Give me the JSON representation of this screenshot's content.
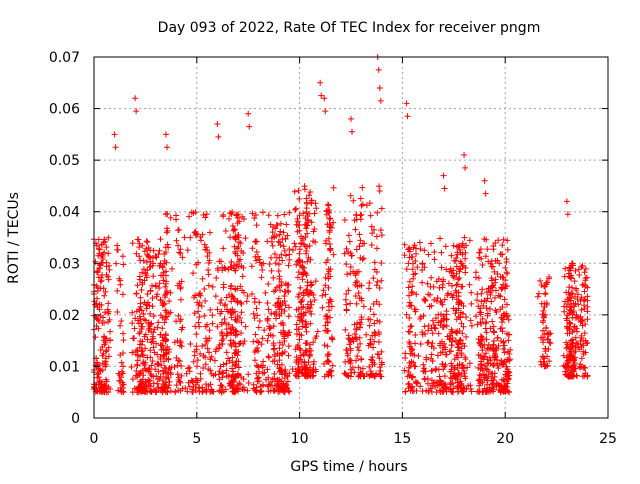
{
  "chart_data": {
    "type": "scatter",
    "title": "Day 093 of 2022, Rate Of TEC Index for receiver pngm",
    "xlabel": "GPS time / hours",
    "ylabel": "ROTI / TECUs",
    "xlim": [
      0,
      25
    ],
    "ylim": [
      0,
      0.07
    ],
    "x_ticks": [
      "0",
      "5",
      "10",
      "15",
      "20",
      "25"
    ],
    "y_ticks": [
      "0",
      "0.01",
      "0.02",
      "0.03",
      "0.04",
      "0.05",
      "0.06",
      "0.07"
    ],
    "grid": true,
    "legend": "none",
    "marker": "plus",
    "color": "#ff0000",
    "density_profile": {
      "description": "approximate envelope of the dense ROTI point cloud per time segment",
      "segments": [
        {
          "x_range": [
            0.0,
            3.5
          ],
          "y_range": [
            0.005,
            0.035
          ],
          "density": "high"
        },
        {
          "x_range": [
            3.5,
            9.5
          ],
          "y_range": [
            0.005,
            0.04
          ],
          "density": "very high"
        },
        {
          "x_range": [
            9.5,
            14.0
          ],
          "y_range": [
            0.008,
            0.045
          ],
          "density": "high"
        },
        {
          "x_range": [
            15.0,
            20.5
          ],
          "y_range": [
            0.005,
            0.035
          ],
          "density": "very high"
        },
        {
          "x_range": [
            21.5,
            22.2
          ],
          "y_range": [
            0.01,
            0.028
          ],
          "density": "low"
        },
        {
          "x_range": [
            22.8,
            24.0
          ],
          "y_range": [
            0.008,
            0.03
          ],
          "density": "medium"
        }
      ],
      "peaks": [
        {
          "x": 1.0,
          "y": 0.055
        },
        {
          "x": 2.0,
          "y": 0.062
        },
        {
          "x": 3.5,
          "y": 0.055
        },
        {
          "x": 6.0,
          "y": 0.057
        },
        {
          "x": 7.5,
          "y": 0.059
        },
        {
          "x": 11.0,
          "y": 0.065
        },
        {
          "x": 11.2,
          "y": 0.062
        },
        {
          "x": 12.5,
          "y": 0.058
        },
        {
          "x": 13.8,
          "y": 0.07
        },
        {
          "x": 13.9,
          "y": 0.064
        },
        {
          "x": 15.2,
          "y": 0.061
        },
        {
          "x": 17.0,
          "y": 0.047
        },
        {
          "x": 18.0,
          "y": 0.051
        },
        {
          "x": 19.0,
          "y": 0.046
        },
        {
          "x": 23.0,
          "y": 0.042
        }
      ]
    }
  }
}
